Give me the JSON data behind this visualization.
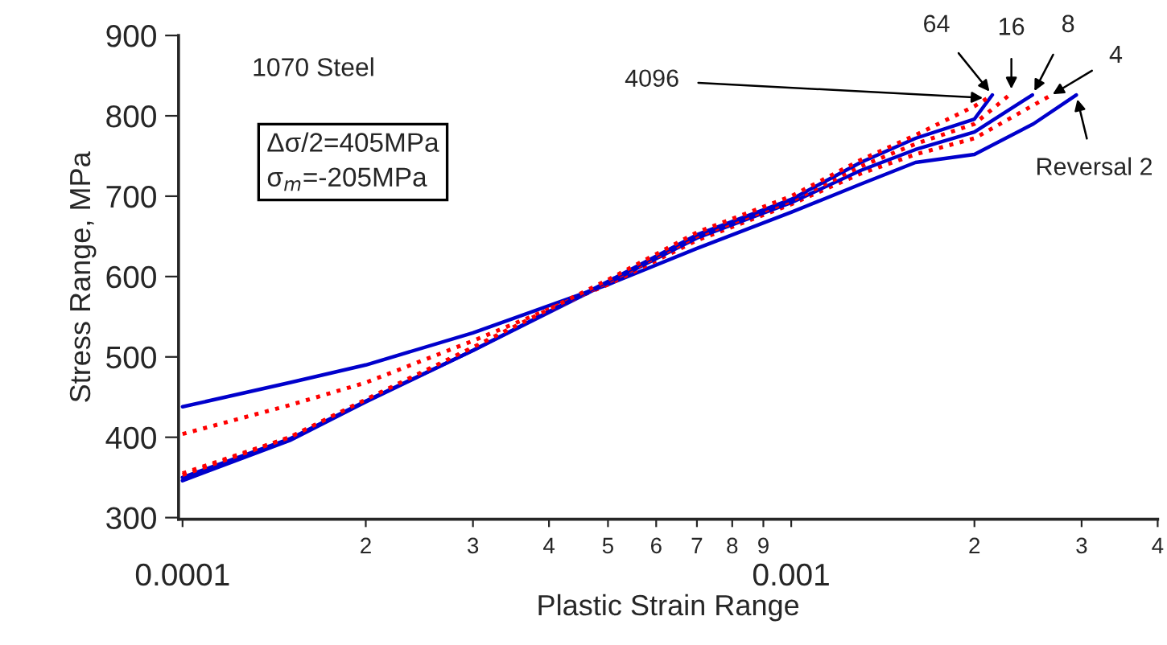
{
  "chart_data": {
    "type": "line",
    "xlabel": "Plastic Strain Range",
    "ylabel": "Stress Range, MPa",
    "log": "x",
    "xlim": [
      9.85e-05,
      0.004
    ],
    "ylim": [
      298,
      900
    ],
    "xticks": [
      0.0001,
      {
        "value": 0.0002,
        "label": null
      },
      {
        "value": 0.0003,
        "label": null
      },
      {
        "value": 0.0004,
        "label": null
      },
      {
        "value": 0.0005,
        "label": null
      },
      {
        "value": 0.0006,
        "label": null
      },
      {
        "value": 0.0007,
        "label": null
      },
      {
        "value": 0.0008,
        "label": null
      },
      {
        "value": 0.0009,
        "label": null
      },
      0.001,
      {
        "value": 0.002,
        "label": null
      },
      {
        "value": 0.003,
        "label": null
      },
      {
        "value": 0.004,
        "label": null
      }
    ],
    "yticks": [
      300,
      400,
      500,
      600,
      700,
      800,
      900
    ],
    "grid": false,
    "legend": false,
    "marker": "none",
    "annotations": [
      "1070 Steel",
      "Δσ/2=405MPa\nσ$_{m}$=-205MPa",
      "2",
      "3",
      "4",
      "5",
      "6",
      "7",
      "8",
      "9",
      "2",
      "3",
      "4"
    ],
    "series": [
      {
        "name": "Reversal 2",
        "color": "#0000cc",
        "line_style": "solid",
        "x": [
          0.0001,
          0.00015,
          0.0002,
          0.0003,
          0.0005,
          0.0007,
          0.001,
          0.0013,
          0.0016,
          0.002,
          0.0025,
          0.00294
        ],
        "values": [
          438,
          468,
          490,
          530,
          590,
          635,
          680,
          715,
          742,
          752,
          790,
          826
        ]
      },
      {
        "name": "4",
        "color": "#ff0000",
        "line_style": "dotted",
        "x": [
          0.0001,
          0.00015,
          0.0002,
          0.0003,
          0.0005,
          0.0007,
          0.001,
          0.0013,
          0.0016,
          0.002,
          0.00265
        ],
        "values": [
          404,
          440,
          468,
          520,
          590,
          645,
          690,
          728,
          752,
          772,
          824
        ]
      },
      {
        "name": "8",
        "color": "#0000cc",
        "line_style": "solid",
        "x": [
          0.0001,
          0.00015,
          0.0002,
          0.0003,
          0.0005,
          0.0007,
          0.001,
          0.0013,
          0.0016,
          0.002,
          0.00249
        ],
        "values": [
          350,
          398,
          445,
          508,
          592,
          648,
          692,
          732,
          758,
          780,
          826
        ]
      },
      {
        "name": "16",
        "color": "#ff0000",
        "line_style": "dotted",
        "x": [
          0.0001,
          0.00015,
          0.0002,
          0.0003,
          0.0005,
          0.0007,
          0.001,
          0.0013,
          0.0016,
          0.002,
          0.0023
        ],
        "values": [
          355,
          400,
          446,
          510,
          593,
          650,
          694,
          737,
          765,
          790,
          828
        ]
      },
      {
        "name": "64",
        "color": "#0000cc",
        "line_style": "solid",
        "x": [
          0.0001,
          0.00015,
          0.0002,
          0.0003,
          0.0005,
          0.0007,
          0.001,
          0.0013,
          0.0016,
          0.002,
          0.00214
        ],
        "values": [
          346,
          396,
          444,
          508,
          594,
          652,
          696,
          742,
          772,
          796,
          826
        ]
      },
      {
        "name": "4096",
        "color": "#ff0000",
        "line_style": "dotted",
        "x": [
          0.0001,
          0.00015,
          0.0002,
          0.0003,
          0.0005,
          0.0007,
          0.001,
          0.0013,
          0.0016,
          0.002,
          0.0021
        ],
        "values": [
          353,
          400,
          447,
          512,
          596,
          655,
          700,
          745,
          776,
          812,
          822
        ]
      }
    ]
  }
}
